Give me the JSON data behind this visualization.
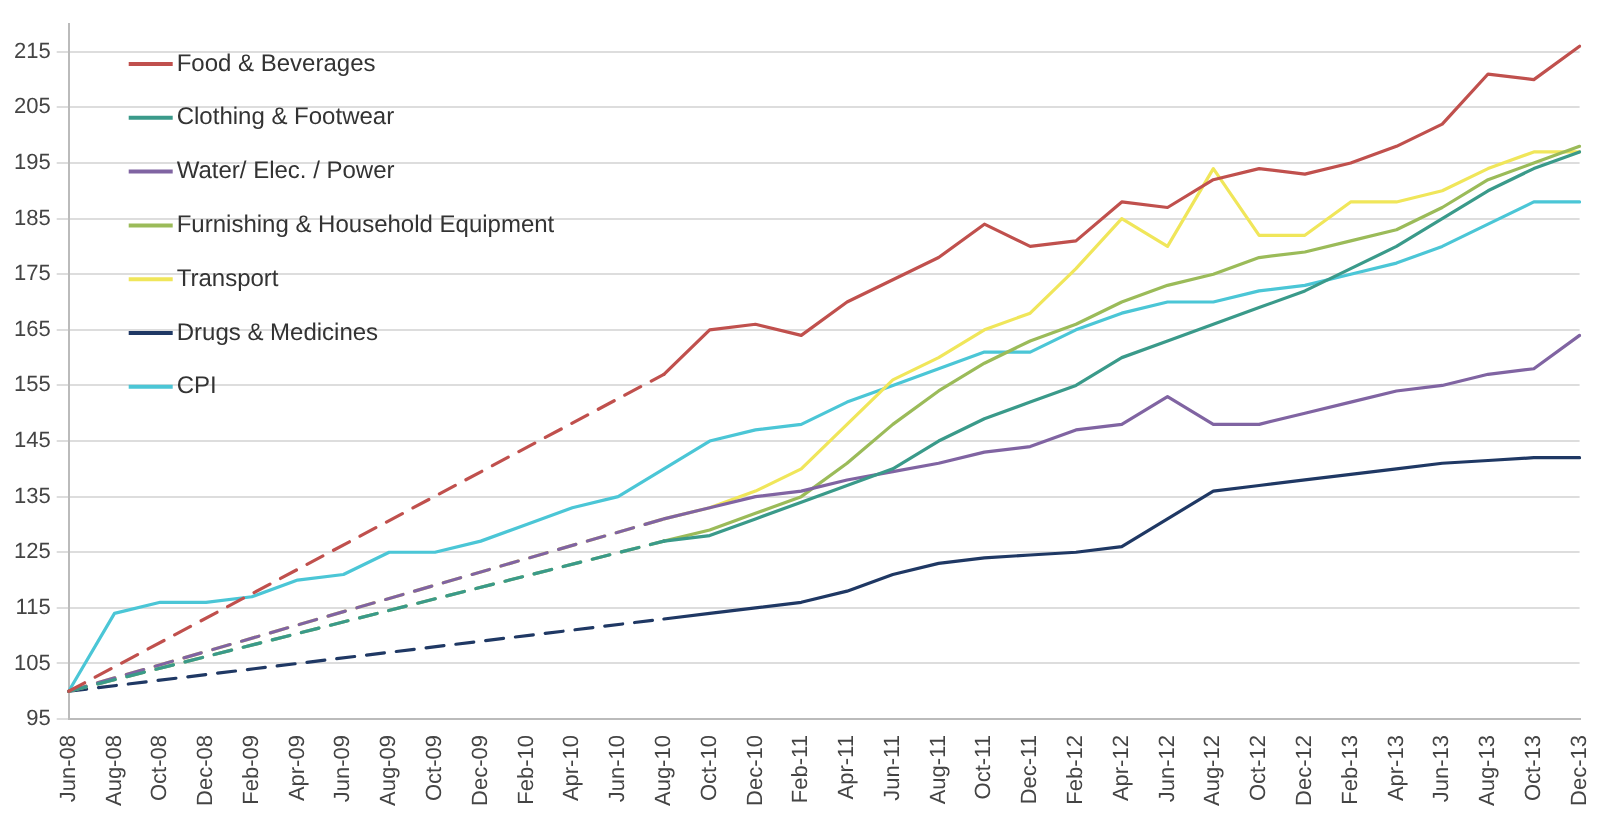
{
  "chart_data": {
    "type": "line",
    "categories": [
      "Jun-08",
      "Aug-08",
      "Oct-08",
      "Dec-08",
      "Feb-09",
      "Apr-09",
      "Jun-09",
      "Aug-09",
      "Oct-09",
      "Dec-09",
      "Feb-10",
      "Apr-10",
      "Jun-10",
      "Aug-10",
      "Oct-10",
      "Dec-10",
      "Feb-11",
      "Apr-11",
      "Jun-11",
      "Aug-11",
      "Oct-11",
      "Dec-11",
      "Feb-12",
      "Apr-12",
      "Jun-12",
      "Aug-12",
      "Oct-12",
      "Dec-12",
      "Feb-13",
      "Apr-13",
      "Jun-13",
      "Aug-13",
      "Oct-13",
      "Dec-13"
    ],
    "series": [
      {
        "name": "Food & Beverages",
        "color": "#c0504d",
        "values": [
          100,
          null,
          null,
          null,
          null,
          null,
          null,
          null,
          null,
          null,
          null,
          null,
          null,
          157,
          165,
          166,
          164,
          170,
          174,
          178,
          184,
          180,
          181,
          188,
          187,
          192,
          194,
          193,
          195,
          198,
          202,
          211,
          210,
          216
        ]
      },
      {
        "name": "Clothing & Footwear",
        "color": "#3a9a8a",
        "values": [
          100,
          null,
          null,
          null,
          null,
          null,
          null,
          null,
          null,
          null,
          null,
          null,
          null,
          127,
          128,
          131,
          134,
          137,
          140,
          145,
          149,
          152,
          155,
          160,
          163,
          166,
          169,
          172,
          176,
          180,
          185,
          190,
          194,
          197
        ]
      },
      {
        "name": "Water/ Elec. / Power",
        "color": "#8064a2",
        "values": [
          100,
          null,
          null,
          null,
          null,
          null,
          null,
          null,
          null,
          null,
          null,
          null,
          null,
          131,
          133,
          135,
          136,
          138,
          139.5,
          141,
          143,
          144,
          147,
          148,
          153,
          148,
          148,
          150,
          152,
          154,
          155,
          157,
          158,
          164
        ]
      },
      {
        "name": "Furnishing & Household Equipment",
        "color": "#9bbb59",
        "values": [
          100,
          null,
          null,
          null,
          null,
          null,
          null,
          null,
          null,
          null,
          null,
          null,
          null,
          127,
          129,
          132,
          135,
          141,
          148,
          154,
          159,
          163,
          166,
          170,
          173,
          175,
          178,
          179,
          181,
          183,
          187,
          192,
          195,
          198
        ]
      },
      {
        "name": "Transport",
        "color": "#f0e65a",
        "values": [
          100,
          null,
          null,
          null,
          null,
          null,
          null,
          null,
          null,
          null,
          null,
          null,
          null,
          131,
          133,
          136,
          140,
          148,
          156,
          160,
          165,
          168,
          176,
          185,
          180,
          194,
          182,
          182,
          188,
          188,
          190,
          194,
          197,
          197
        ]
      },
      {
        "name": "Drugs & Medicines",
        "color": "#1f3864",
        "values": [
          100,
          null,
          null,
          null,
          null,
          null,
          null,
          null,
          null,
          null,
          null,
          null,
          null,
          113,
          114,
          115,
          116,
          118,
          121,
          123,
          124,
          124.5,
          125,
          126,
          131,
          136,
          137,
          138,
          139,
          140,
          141,
          141.5,
          142,
          142
        ]
      },
      {
        "name": "CPI",
        "color": "#4bc6d6",
        "values": [
          100,
          114,
          116,
          116,
          117,
          120,
          121,
          125,
          125,
          127,
          130,
          133,
          135,
          140,
          145,
          147,
          148,
          152,
          155,
          158,
          161,
          161,
          165,
          168,
          170,
          170,
          172,
          173,
          175,
          177,
          180,
          184,
          188,
          188
        ]
      }
    ],
    "ylim": [
      95,
      220
    ],
    "yticks": [
      95,
      105,
      115,
      125,
      135,
      145,
      155,
      165,
      175,
      185,
      195,
      205,
      215
    ],
    "grid": "y",
    "legend": "top left",
    "marker": "none",
    "line_style": "solid"
  }
}
